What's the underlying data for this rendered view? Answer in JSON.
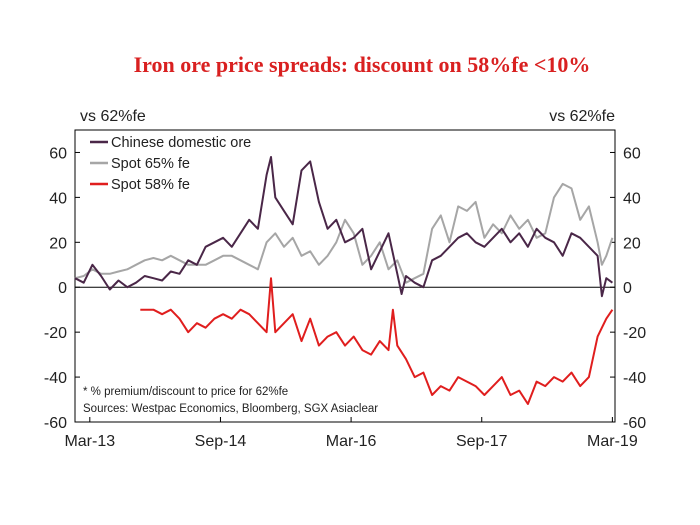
{
  "chart_data": {
    "type": "line",
    "title": "Iron ore price spreads: discount on 58%fe <10%",
    "ylabel_left": "vs 62%fe",
    "ylabel_right": "vs 62%fe",
    "ylim": [
      -60,
      70
    ],
    "yticks": [
      -60,
      -40,
      -20,
      0,
      20,
      40,
      60
    ],
    "xlim": [
      2013.0,
      2019.2
    ],
    "xticks": [
      {
        "label": "Mar-13",
        "x": 2013.17
      },
      {
        "label": "Sep-14",
        "x": 2014.67
      },
      {
        "label": "Mar-16",
        "x": 2016.17
      },
      {
        "label": "Sep-17",
        "x": 2017.67
      },
      {
        "label": "Mar-19",
        "x": 2019.17
      }
    ],
    "series": [
      {
        "name": "Chinese domestic ore",
        "color": "#4a2748",
        "x": [
          2013.0,
          2013.1,
          2013.2,
          2013.3,
          2013.4,
          2013.5,
          2013.6,
          2013.7,
          2013.8,
          2013.9,
          2014.0,
          2014.1,
          2014.2,
          2014.3,
          2014.4,
          2014.5,
          2014.6,
          2014.7,
          2014.8,
          2014.9,
          2015.0,
          2015.1,
          2015.2,
          2015.25,
          2015.3,
          2015.4,
          2015.5,
          2015.6,
          2015.7,
          2015.8,
          2015.9,
          2016.0,
          2016.1,
          2016.2,
          2016.3,
          2016.4,
          2016.5,
          2016.6,
          2016.7,
          2016.75,
          2016.8,
          2016.9,
          2017.0,
          2017.1,
          2017.2,
          2017.3,
          2017.4,
          2017.5,
          2017.6,
          2017.7,
          2017.8,
          2017.9,
          2018.0,
          2018.1,
          2018.2,
          2018.3,
          2018.4,
          2018.5,
          2018.6,
          2018.7,
          2018.8,
          2018.9,
          2019.0,
          2019.05,
          2019.1,
          2019.17
        ],
        "values": [
          4,
          2,
          10,
          5,
          -1,
          3,
          0,
          2,
          5,
          4,
          3,
          7,
          6,
          12,
          10,
          18,
          20,
          22,
          18,
          24,
          30,
          26,
          50,
          58,
          40,
          34,
          28,
          52,
          56,
          38,
          26,
          30,
          20,
          22,
          26,
          8,
          16,
          24,
          6,
          -3,
          5,
          2,
          0,
          12,
          14,
          18,
          22,
          24,
          20,
          18,
          22,
          26,
          20,
          24,
          18,
          26,
          22,
          20,
          14,
          24,
          22,
          18,
          14,
          -4,
          4,
          2
        ]
      },
      {
        "name": "Spot 65% fe",
        "color": "#a6a6a6",
        "x": [
          2013.0,
          2013.1,
          2013.2,
          2013.3,
          2013.4,
          2013.5,
          2013.6,
          2013.7,
          2013.8,
          2013.9,
          2014.0,
          2014.1,
          2014.2,
          2014.3,
          2014.4,
          2014.5,
          2014.6,
          2014.7,
          2014.8,
          2014.9,
          2015.0,
          2015.1,
          2015.2,
          2015.3,
          2015.4,
          2015.5,
          2015.6,
          2015.7,
          2015.8,
          2015.9,
          2016.0,
          2016.1,
          2016.2,
          2016.3,
          2016.4,
          2016.5,
          2016.6,
          2016.7,
          2016.8,
          2016.9,
          2017.0,
          2017.1,
          2017.2,
          2017.3,
          2017.4,
          2017.5,
          2017.6,
          2017.7,
          2017.8,
          2017.9,
          2018.0,
          2018.1,
          2018.2,
          2018.3,
          2018.4,
          2018.5,
          2018.6,
          2018.7,
          2018.8,
          2018.9,
          2019.0,
          2019.05,
          2019.1,
          2019.17
        ],
        "values": [
          4,
          5,
          8,
          6,
          6,
          7,
          8,
          10,
          12,
          13,
          12,
          14,
          12,
          10,
          10,
          10,
          12,
          14,
          14,
          12,
          10,
          8,
          20,
          24,
          18,
          22,
          14,
          16,
          10,
          14,
          20,
          30,
          24,
          10,
          14,
          20,
          8,
          12,
          2,
          4,
          6,
          26,
          32,
          20,
          36,
          34,
          38,
          22,
          28,
          24,
          32,
          26,
          30,
          22,
          24,
          40,
          46,
          44,
          30,
          36,
          20,
          10,
          14,
          22
        ]
      },
      {
        "name": "Spot 58% fe",
        "color": "#e01e1e",
        "x": [
          2013.75,
          2013.9,
          2014.0,
          2014.1,
          2014.2,
          2014.3,
          2014.4,
          2014.5,
          2014.6,
          2014.7,
          2014.8,
          2014.9,
          2015.0,
          2015.1,
          2015.2,
          2015.25,
          2015.3,
          2015.4,
          2015.5,
          2015.6,
          2015.7,
          2015.8,
          2015.9,
          2016.0,
          2016.1,
          2016.2,
          2016.3,
          2016.4,
          2016.5,
          2016.6,
          2016.65,
          2016.7,
          2016.8,
          2016.9,
          2017.0,
          2017.1,
          2017.2,
          2017.3,
          2017.4,
          2017.5,
          2017.6,
          2017.7,
          2017.8,
          2017.9,
          2018.0,
          2018.1,
          2018.2,
          2018.3,
          2018.4,
          2018.5,
          2018.6,
          2018.7,
          2018.8,
          2018.9,
          2019.0,
          2019.05,
          2019.1,
          2019.17
        ],
        "values": [
          -10,
          -10,
          -12,
          -10,
          -14,
          -20,
          -16,
          -18,
          -14,
          -12,
          -14,
          -10,
          -12,
          -16,
          -20,
          4,
          -20,
          -16,
          -12,
          -24,
          -14,
          -26,
          -22,
          -20,
          -26,
          -22,
          -28,
          -30,
          -24,
          -28,
          -10,
          -26,
          -32,
          -40,
          -38,
          -48,
          -44,
          -46,
          -40,
          -42,
          -44,
          -48,
          -44,
          -40,
          -48,
          -46,
          -52,
          -42,
          -44,
          -40,
          -42,
          -38,
          -44,
          -40,
          -22,
          -18,
          -14,
          -10
        ]
      }
    ],
    "annotations": [
      "* % premium/discount to price for 62%fe",
      "Sources: Westpac Economics,  Bloomberg, SGX Asiaclear"
    ]
  }
}
